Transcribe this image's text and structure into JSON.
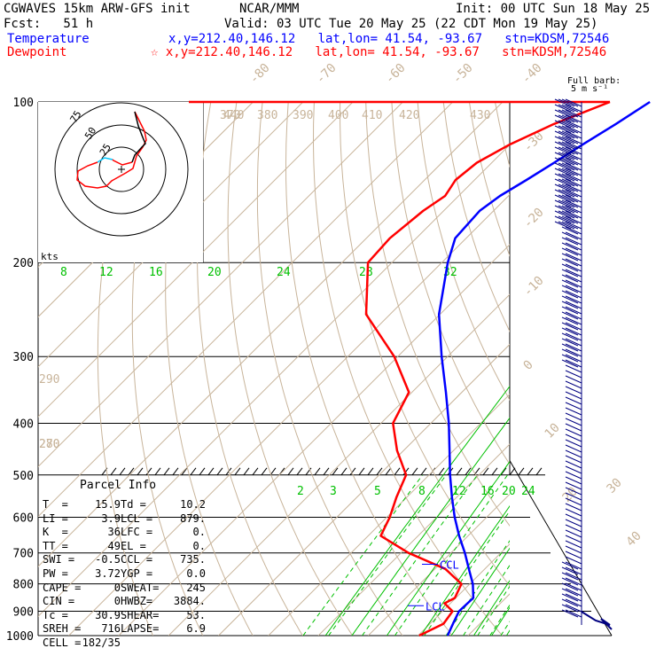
{
  "header": {
    "model": "CGWAVES 15km ARW-GFS init",
    "org": "NCAR/MMM",
    "init": "Init: 00 UTC Sun 18 May 25",
    "fcst": "Fcst:   51 h",
    "valid": "Valid: 03 UTC Tue 20 May 25 (22 CDT Mon 19 May 25)",
    "temperature_label": "Temperature",
    "dewpoint_label": "Dewpoint",
    "temp_loc": "x,y=212.40,146.12   lat,lon= 41.54, -93.67   stn=KDSM,72546",
    "dew_loc": "☆ x,y=212.40,146.12   lat,lon= 41.54, -93.67   stn=KDSM,72546",
    "barb_label_1": "Full barb:",
    "barb_label_2": "5 m s⁻¹"
  },
  "hodograph": {
    "units": "kts",
    "ring_labels": [
      "25",
      "50",
      "75"
    ]
  },
  "parcel_info": {
    "title": "Parcel Info",
    "rows": [
      [
        "T  =",
        "15.9",
        "Td =",
        "10.2"
      ],
      [
        "LI =",
        "3.9",
        "LCL =",
        "879."
      ],
      [
        "K  =",
        "36",
        "LFC =",
        "0."
      ],
      [
        "TT =",
        "49",
        "EL =",
        "0."
      ],
      [
        "SWI =",
        "-0.5",
        "CCL =",
        "735."
      ],
      [
        "PW =",
        "3.72",
        "YGP =",
        "0.0"
      ],
      [
        "CAPE =",
        "0",
        "SWEAT=",
        "245"
      ],
      [
        "CIN =",
        "0",
        "HWBZ=",
        "3884."
      ],
      [
        "Tc =",
        "30.9",
        "SHEAR=",
        "53."
      ],
      [
        "SREH =",
        "716",
        "LAPSE=",
        "6.9"
      ],
      [
        "CELL =",
        "182/35",
        "",
        ""
      ]
    ]
  },
  "colors": {
    "temperature": "#0000ff",
    "dewpoint": "#ff0000",
    "isotherm": "#c8b49a",
    "theta": "#c8b49a",
    "mixing_ratio": "#00c000",
    "grid": "#000000",
    "hodo_trace_low": "#00c8ff",
    "hodo_trace_mid": "#ff0000",
    "hodo_trace_high": "#000000",
    "wind_barb": "#000080",
    "ccl": "#0000ff"
  },
  "chart_data": {
    "type": "line",
    "xlabel": "",
    "ylabel": "",
    "pressure_levels": [
      100,
      200,
      300,
      400,
      500,
      600,
      700,
      800,
      900,
      1000
    ],
    "isotherm_labels": [
      "-80",
      "-70",
      "-60",
      "-50",
      "-40",
      "-30",
      "-20",
      "-10",
      "0",
      "10",
      "20",
      "30",
      "40"
    ],
    "theta_labels": [
      "370",
      "380",
      "390",
      "400",
      "410",
      "420",
      "430",
      "440",
      "290",
      "280",
      "270"
    ],
    "mixing_ratio_labels_upper": [
      "8",
      "12",
      "16",
      "20",
      "24",
      "28",
      "32"
    ],
    "mixing_ratio_labels_lower": [
      "2",
      "3",
      "5",
      "8",
      "12",
      "16",
      "20",
      "24"
    ],
    "markers": [
      {
        "label": "CCL",
        "pressure": 735
      },
      {
        "label": "LCL",
        "pressure": 879
      }
    ],
    "series": [
      {
        "name": "Temperature",
        "points": [
          [
            1000,
            15.9
          ],
          [
            950,
            14.6
          ],
          [
            900,
            13.3
          ],
          [
            850,
            13.5
          ],
          [
            800,
            10.6
          ],
          [
            750,
            6.8
          ],
          [
            700,
            2.8
          ],
          [
            650,
            -1.8
          ],
          [
            600,
            -6.4
          ],
          [
            550,
            -11
          ],
          [
            500,
            -15.8
          ],
          [
            450,
            -20.8
          ],
          [
            400,
            -26.4
          ],
          [
            350,
            -33.2
          ],
          [
            300,
            -41.2
          ],
          [
            250,
            -50.2
          ],
          [
            200,
            -58.8
          ],
          [
            180,
            -62.2
          ],
          [
            160,
            -62.8
          ],
          [
            150,
            -61.7
          ],
          [
            140,
            -59.6
          ],
          [
            130,
            -57.5
          ],
          [
            120,
            -55.4
          ],
          [
            110,
            -52.9
          ],
          [
            100,
            -50.5
          ]
        ]
      },
      {
        "name": "Dewpoint",
        "points": [
          [
            1000,
            10.2
          ],
          [
            950,
            12.7
          ],
          [
            900,
            12.0
          ],
          [
            870,
            8.8
          ],
          [
            850,
            9.8
          ],
          [
            800,
            8.3
          ],
          [
            750,
            2.1
          ],
          [
            700,
            -8.5
          ],
          [
            650,
            -17.5
          ],
          [
            600,
            -19.4
          ],
          [
            550,
            -22.1
          ],
          [
            500,
            -24.6
          ],
          [
            450,
            -31.3
          ],
          [
            400,
            -37.6
          ],
          [
            350,
            -40.6
          ],
          [
            300,
            -50.7
          ],
          [
            250,
            -64.8
          ],
          [
            200,
            -74.8
          ],
          [
            180,
            -75.3
          ],
          [
            160,
            -74.1
          ],
          [
            150,
            -72.7
          ],
          [
            140,
            -73.8
          ],
          [
            130,
            -73.0
          ],
          [
            120,
            -70.0
          ],
          [
            110,
            -65.3
          ],
          [
            100,
            -58.5
          ]
        ]
      }
    ]
  }
}
